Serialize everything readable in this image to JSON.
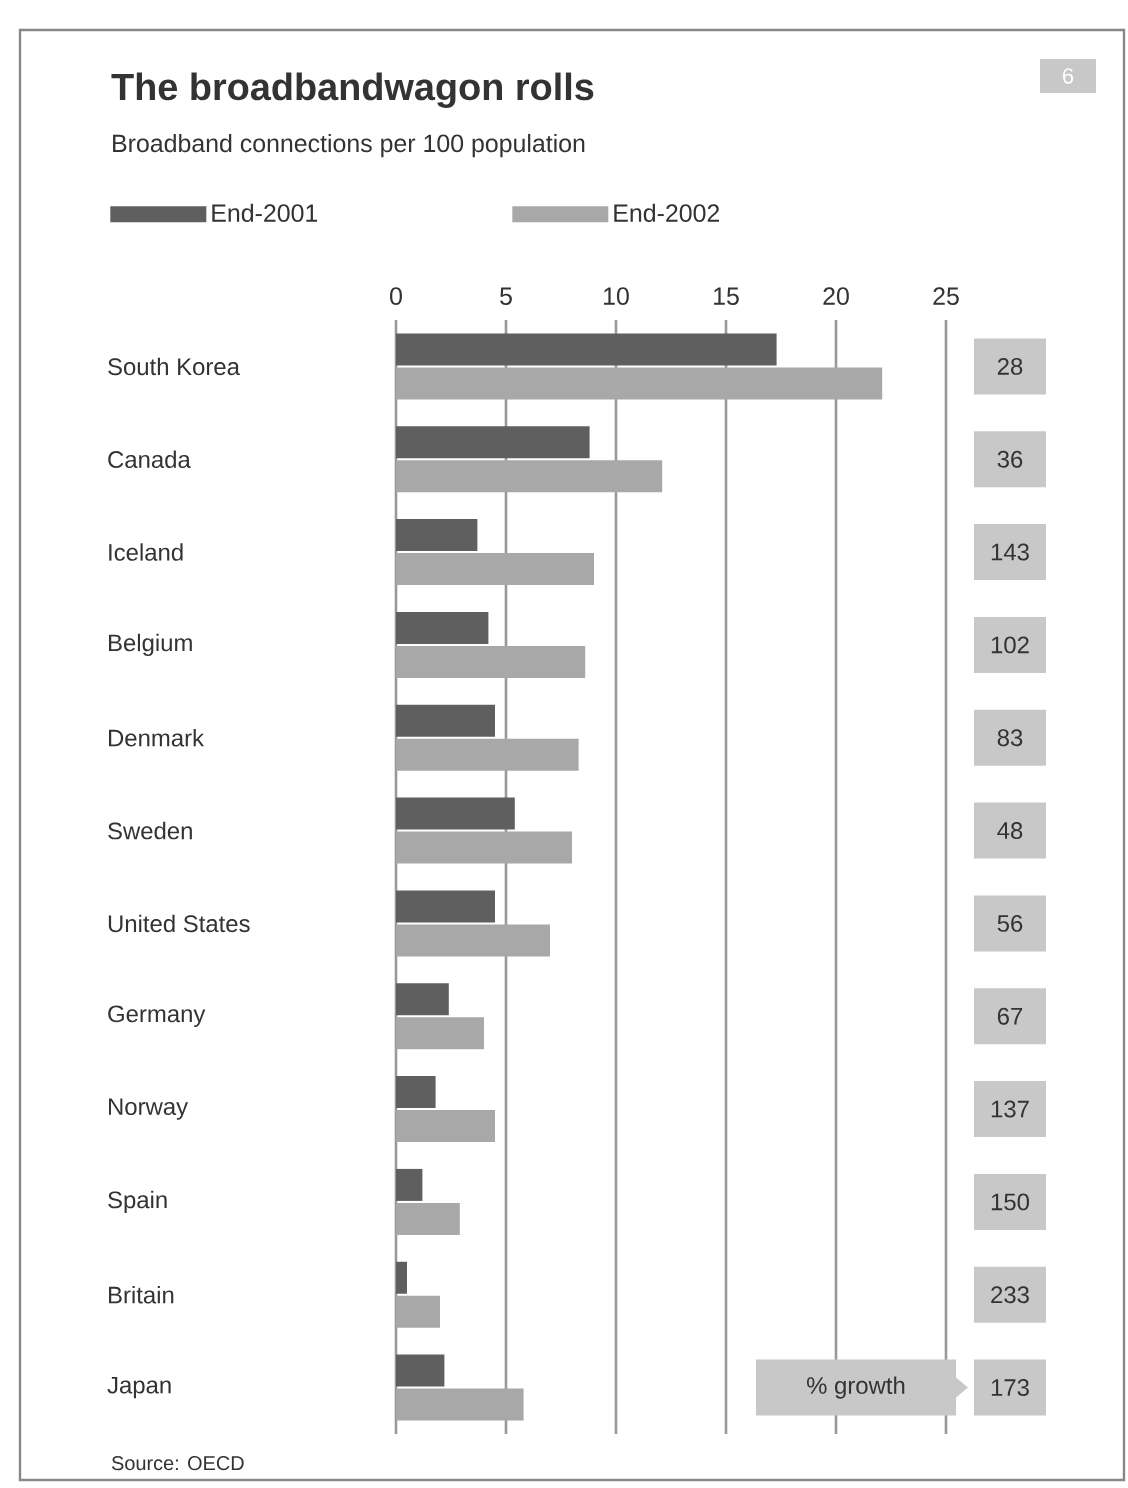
{
  "chart_data": {
    "type": "bar",
    "orientation": "horizontal",
    "title": "The broadbandwagon rolls",
    "subtitle": "Broadband connections per 100 population",
    "categories": [
      "South Korea",
      "Canada",
      "Iceland",
      "Belgium",
      "Denmark",
      "Sweden",
      "United States",
      "Germany",
      "Norway",
      "Spain",
      "Britain",
      "Japan"
    ],
    "series": [
      {
        "name": "End-2001",
        "color": "#5f5f5f",
        "values": [
          17.3,
          8.8,
          3.7,
          4.2,
          4.5,
          5.4,
          4.5,
          2.4,
          1.8,
          1.2,
          0.5,
          2.2
        ]
      },
      {
        "name": "End-2002",
        "color": "#a8a8a8",
        "values": [
          22.1,
          12.1,
          9.0,
          8.6,
          8.3,
          8.0,
          7.0,
          4.0,
          4.5,
          2.9,
          2.0,
          5.8
        ]
      }
    ],
    "xlim": [
      0,
      25
    ],
    "xticks": [
      0,
      5,
      10,
      15,
      20,
      25
    ],
    "grid": "x",
    "legend": "top",
    "annotations": [
      "6",
      "28",
      "36",
      "143",
      "102",
      "83",
      "48",
      "56",
      "67",
      "137",
      "150",
      "233",
      "173",
      "% growth",
      "Source: OECD"
    ]
  }
}
